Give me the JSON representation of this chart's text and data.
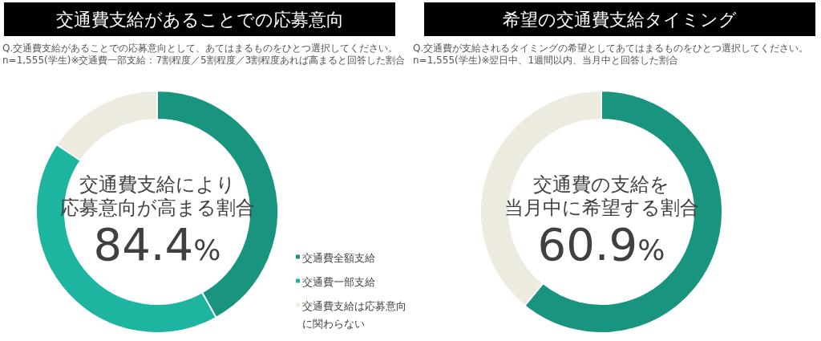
{
  "chart_data": [
    {
      "type": "donut",
      "title": "交通費支給があることでの応募意向",
      "subtitle": "Q.交通費支給があることでの応募意向として、あてはまるものをひとつ選択してください。\nn=1,555(学生)※交通費一部支給：7割程度／5割程度／3割程度あれば高まると回答した割合",
      "categories": [
        "交通費全額支給",
        "交通費一部支給",
        "交通費支給は応募意向に関わらない"
      ],
      "values": [
        41.9,
        42.5,
        15.6
      ],
      "colors": [
        "#19957f",
        "#1db5a0",
        "#edebe0"
      ],
      "legend": "bottom right",
      "annotations": [
        "交通費支給により",
        "応募意向が高まる割合",
        "84.4%"
      ]
    },
    {
      "type": "donut",
      "title": "希望の交通費支給タイミング",
      "subtitle": "Q.交通費が支給されるタイミングの希望としてあてはまるものをひとつ選択してください。\nn=1,555(学生)※翌日中、1週間以内、当月中と回答した割合",
      "categories": [
        null,
        null
      ],
      "values": [
        60.9,
        39.1
      ],
      "colors": [
        "#19957f",
        "#edebe0"
      ],
      "annotations": [
        "交通費の支給を",
        "当月中に希望する割合",
        "60.9%"
      ]
    }
  ]
}
